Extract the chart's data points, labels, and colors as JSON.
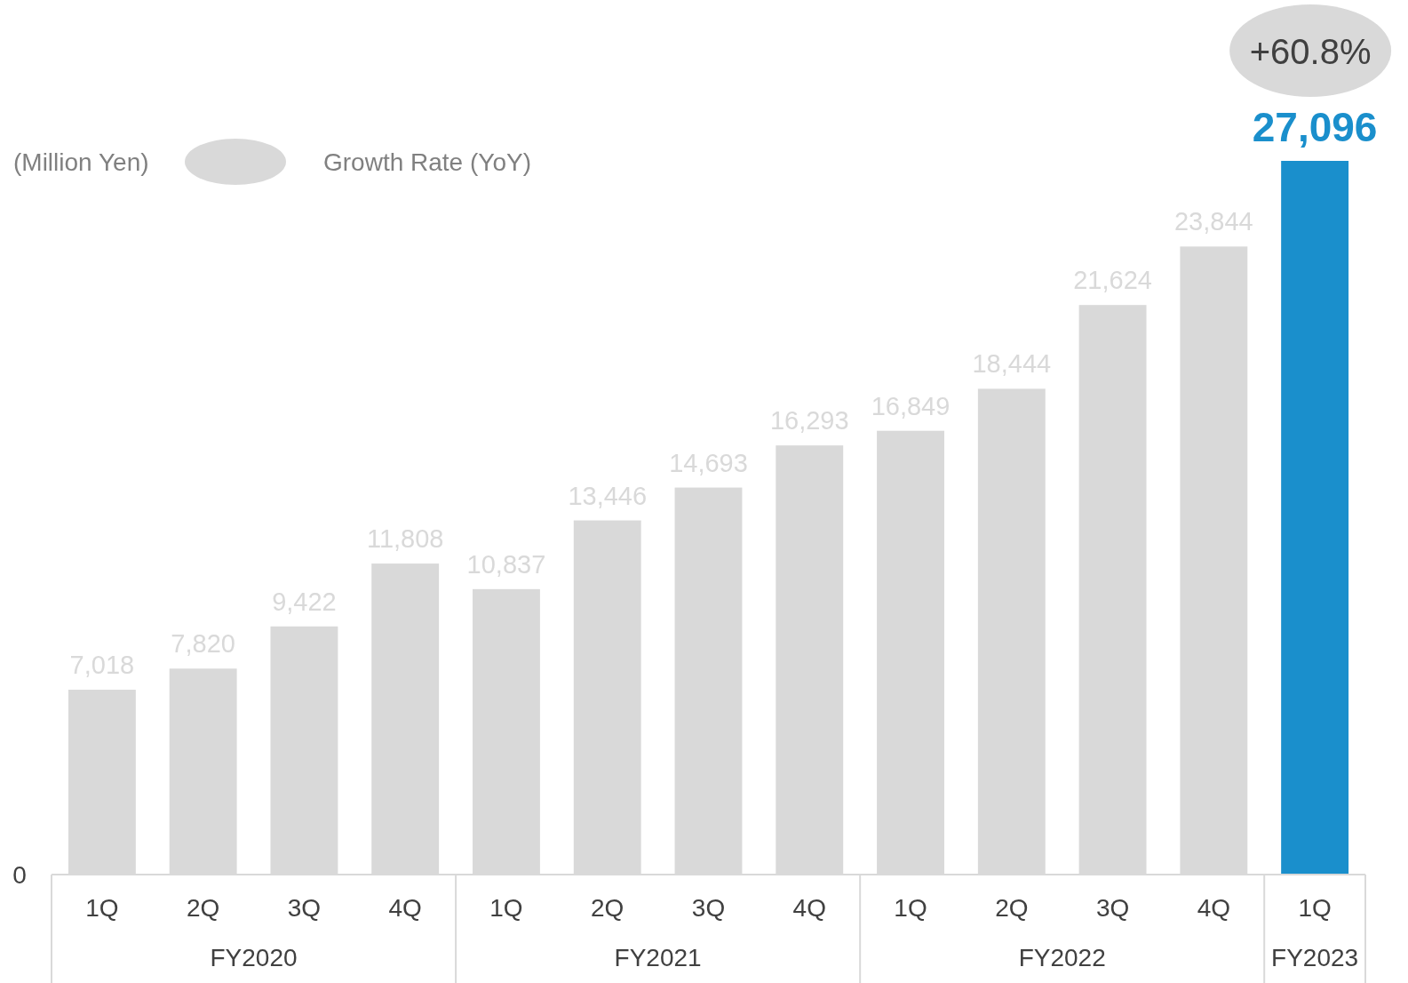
{
  "chart_data": {
    "type": "bar",
    "ylabel": "(Million Yen)",
    "categories": [
      "1Q",
      "2Q",
      "3Q",
      "4Q",
      "1Q",
      "2Q",
      "3Q",
      "4Q",
      "1Q",
      "2Q",
      "3Q",
      "4Q",
      "1Q"
    ],
    "values": [
      7018,
      7820,
      9422,
      11808,
      10837,
      13446,
      14693,
      16293,
      16849,
      18444,
      21624,
      23844,
      27096
    ],
    "colors": [
      "#d9d9d9",
      "#d9d9d9",
      "#d9d9d9",
      "#d9d9d9",
      "#d9d9d9",
      "#d9d9d9",
      "#d9d9d9",
      "#d9d9d9",
      "#d9d9d9",
      "#d9d9d9",
      "#d9d9d9",
      "#d9d9d9",
      "#1a8fcc"
    ],
    "value_labels": [
      "7,018",
      "7,820",
      "9,422",
      "11,808",
      "10,837",
      "13,446",
      "14,693",
      "16,293",
      "16,849",
      "18,444",
      "21,624",
      "23,844",
      "27,096"
    ],
    "annotations": [
      "FY2020",
      "FY2021",
      "FY2022",
      "FY2023",
      "Growth Rate (YoY)",
      "+60.8%",
      "0"
    ]
  }
}
